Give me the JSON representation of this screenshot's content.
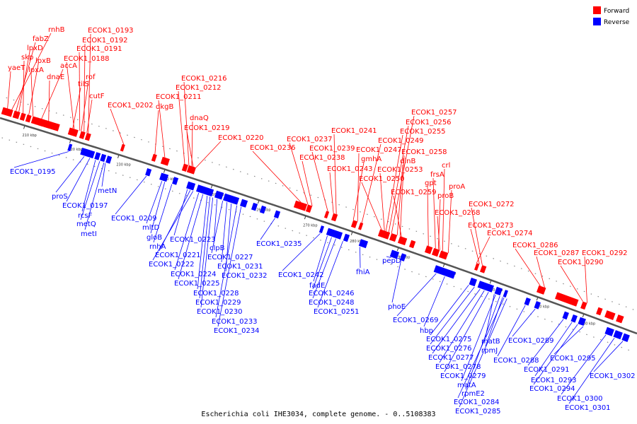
{
  "caption": "Escherichia coli IHE3034, complete genome. - 0..5108383",
  "legend": [
    {
      "label": "Forward",
      "color": "#ff0000"
    },
    {
      "label": "Reverse",
      "color": "#0000ff"
    }
  ],
  "colors": {
    "forward": "#ff0000",
    "reverse": "#0000ff",
    "backbone": "#777777"
  },
  "ticks": [
    "210 kbp",
    "220 kbp",
    "230 kbp",
    "240 kbp",
    "250 kbp",
    "260 kbp",
    "270 kbp",
    "280 kbp",
    "290 kbp",
    "300 kbp",
    "310 kbp",
    "320 kbp",
    "330 kbp"
  ],
  "forward_labels": [
    "rnhB",
    "fabZ",
    "lpxD",
    "skp",
    "lpxB",
    "yaeT",
    "lpxA",
    "accA",
    "dnaE",
    "tilS",
    "rof",
    "cutF",
    "ECOK1_0193",
    "ECOK1_0192",
    "ECOK1_0191",
    "ECOK1_0188",
    "ECOK1_0202",
    "ECOK1_0216",
    "ECOK1_0212",
    "ECOK1_0211",
    "dkgB",
    "dnaQ",
    "ECOK1_0219",
    "ECOK1_0220",
    "ECOK1_0237",
    "ECOK1_0236",
    "ECOK1_0241",
    "ECOK1_0239",
    "ECOK1_0238",
    "ECOK1_0249",
    "ECOK1_0247",
    "gmhA",
    "ECOK1_0243",
    "ECOK1_0257",
    "ECOK1_0256",
    "ECOK1_0255",
    "ECOK1_0258",
    "dinB",
    "ECOK1_0253",
    "ECOK1_0250",
    "crl",
    "frsA",
    "gpt",
    "proA",
    "proB",
    "ECOK1_0259",
    "ECOK1_0268",
    "ECOK1_0272",
    "ECOK1_0273",
    "ECOK1_0274",
    "ECOK1_0286",
    "ECOK1_0287",
    "ECOK1_0292",
    "ECOK1_0290"
  ],
  "reverse_labels": [
    "ECOK1_0195",
    "proS",
    "ECOK1_0197",
    "rcsF",
    "metQ",
    "metI",
    "metN",
    "ECOK1_0209",
    "mltD",
    "gloB",
    "rnhA",
    "ECOK1_0223",
    "ECOK1_0221",
    "ECOK1_0222",
    "clpB",
    "ECOK1_0227",
    "ECOK1_0224",
    "ECOK1_0231",
    "ECOK1_0225",
    "ECOK1_0232",
    "ECOK1_0228",
    "ECOK1_0229",
    "ECOK1_0230",
    "ECOK1_0233",
    "ECOK1_0234",
    "ECOK1_0235",
    "ECOK1_0242",
    "fadE",
    "ECOK1_0246",
    "ECOK1_0248",
    "ECOK1_0251",
    "fhiA",
    "pepD",
    "phoE",
    "ECOK1_0269",
    "hbp",
    "ECOK1_0275",
    "ECOK1_0276",
    "ECOK1_0277",
    "ECOK1_0278",
    "ECOK1_0279",
    "matB",
    "rpmJ",
    "matA",
    "rpmE2",
    "ECOK1_0284",
    "ECOK1_0285",
    "ECOK1_0288",
    "ECOK1_0289",
    "ECOK1_0291",
    "ECOK1_0293",
    "ECOK1_0294",
    "ECOK1_0295",
    "ECOK1_0300",
    "ECOK1_0301",
    "ECOK1_0302"
  ]
}
